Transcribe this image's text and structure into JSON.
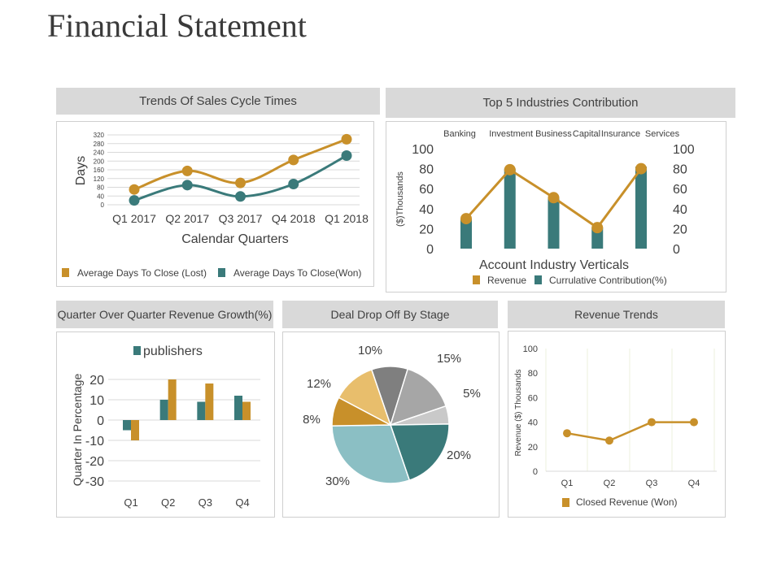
{
  "page": {
    "title": "Financial Statement"
  },
  "colors": {
    "gold": "#c8902a",
    "teal": "#3a7a7a",
    "grid": "#d9d9d9",
    "header_bg": "#d9d9d9"
  },
  "chart_data": [
    {
      "id": "sales_cycle",
      "type": "line",
      "title": "Trends Of Sales Cycle Times",
      "xlabel": "Calendar Quarters",
      "ylabel": "Days",
      "categories": [
        "Q1 2017",
        "Q2 2017",
        "Q3 2017",
        "Q4 2018",
        "Q1 2018"
      ],
      "yticks": [
        0,
        40,
        80,
        120,
        160,
        200,
        240,
        280,
        320
      ],
      "ylim": [
        0,
        320
      ],
      "series": [
        {
          "name": "Average Days To Close (Lost)",
          "color": "#c8902a",
          "values": [
            70,
            155,
            100,
            205,
            300
          ]
        },
        {
          "name": "Average Days To Close(Won)",
          "color": "#3a7a7a",
          "values": [
            20,
            90,
            38,
            95,
            225
          ]
        }
      ],
      "legend": "bottom"
    },
    {
      "id": "industries",
      "type": "bar",
      "title": "Top 5 Industries Contribution",
      "xlabel": "Account Industry Verticals",
      "ylabel": "($)Thousands",
      "categories": [
        "Banking",
        "Investment Business",
        "Capital",
        "Insurance",
        "Services"
      ],
      "yticks": [
        0,
        20,
        40,
        60,
        80,
        100
      ],
      "ylim": [
        0,
        100
      ],
      "series": [
        {
          "name": "Revenue",
          "kind": "line",
          "color": "#c8902a",
          "values": [
            30,
            79,
            51,
            21,
            80
          ]
        },
        {
          "name": "Currulative Contribution(%)",
          "kind": "bar",
          "color": "#3a7a7a",
          "values": [
            30,
            80,
            51,
            21,
            82
          ]
        }
      ],
      "legend": "bottom"
    },
    {
      "id": "qoq_growth",
      "type": "bar",
      "title": "Quarter Over Quarter Revenue Growth(%)",
      "ylabel": "Quarter In Percentage",
      "categories": [
        "Q1",
        "Q2",
        "Q3",
        "Q4"
      ],
      "yticks": [
        20,
        10,
        0,
        -10,
        -20,
        -30
      ],
      "ylim": [
        -30,
        20
      ],
      "series": [
        {
          "name": "publishers",
          "color": "#3a7a7a",
          "values": [
            -5,
            10,
            9,
            12
          ]
        },
        {
          "name": "",
          "color": "#c8902a",
          "values": [
            -10,
            20,
            18,
            9
          ]
        }
      ],
      "legend": "top"
    },
    {
      "id": "deal_drop",
      "type": "pie",
      "title": "Deal Drop Off By Stage",
      "slices": [
        {
          "label": "10%",
          "value": 10,
          "color": "#7f7f7f"
        },
        {
          "label": "15%",
          "value": 15,
          "color": "#a6a6a6"
        },
        {
          "label": "5%",
          "value": 5,
          "color": "#c9c9c9"
        },
        {
          "label": "20%",
          "value": 20,
          "color": "#3a7a7a"
        },
        {
          "label": "30%",
          "value": 30,
          "color": "#8bbfc4"
        },
        {
          "label": "8%",
          "value": 8,
          "color": "#c8902a"
        },
        {
          "label": "12%",
          "value": 12,
          "color": "#e8be6c"
        }
      ]
    },
    {
      "id": "revenue_trends",
      "type": "line",
      "title": "Revenue Trends",
      "ylabel": "Revenue ($) Thousands",
      "categories": [
        "Q1",
        "Q2",
        "Q3",
        "Q4"
      ],
      "yticks": [
        0,
        20,
        40,
        60,
        80,
        100
      ],
      "ylim": [
        0,
        100
      ],
      "series": [
        {
          "name": "Closed Revenue (Won)",
          "color": "#c8902a",
          "values": [
            31,
            25,
            40,
            40
          ]
        }
      ],
      "legend": "bottom"
    }
  ]
}
